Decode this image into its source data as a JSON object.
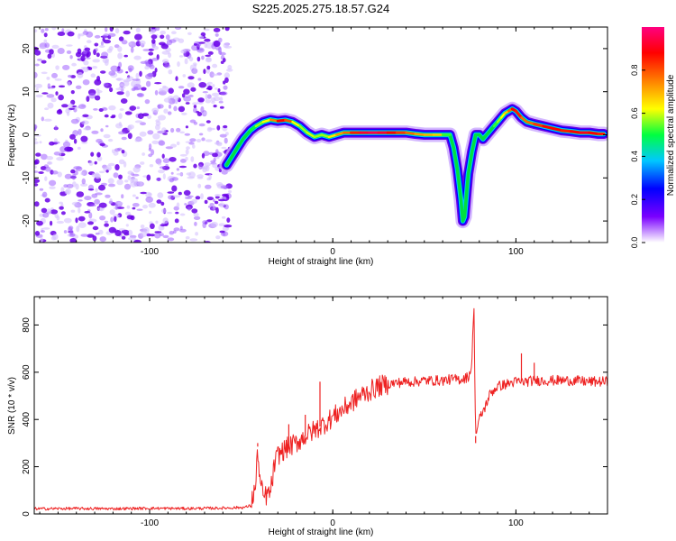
{
  "chart_data": [
    {
      "type": "heatmap",
      "title": "S225.2025.275.18.57.G24",
      "xlabel": "Height of straight line (km)",
      "ylabel": "Frequency (Hz)",
      "xlim": [
        -163,
        150
      ],
      "ylim": [
        -25,
        25
      ],
      "xticks": [
        -100,
        0,
        100
      ],
      "yticks": [
        -20,
        -10,
        0,
        10,
        20
      ],
      "colorbar": {
        "label": "Normalized spectral amplitude",
        "range": [
          0,
          1
        ],
        "ticks": [
          0.0,
          0.2,
          0.4,
          0.6,
          0.8
        ],
        "colormap": [
          "#ffffff",
          "#7a00ff",
          "#0000ff",
          "#00c8ff",
          "#00ff40",
          "#ffff00",
          "#ff8000",
          "#ff0000",
          "#ff0080"
        ]
      },
      "noise_region": {
        "x_range": [
          -163,
          -56
        ],
        "amplitude_range": [
          0.02,
          0.15
        ],
        "color": "#7a00ff"
      },
      "ridge": {
        "x": [
          -58,
          -55,
          -52,
          -49,
          -45,
          -42,
          -38,
          -34,
          -30,
          -26,
          -22,
          -18,
          -14,
          -10,
          -6,
          -2,
          2,
          6,
          10,
          15,
          20,
          25,
          30,
          35,
          40,
          45,
          50,
          55,
          60,
          64,
          66,
          68,
          70,
          71,
          72,
          73,
          74,
          76,
          78,
          80,
          82,
          84,
          86,
          88,
          90,
          92,
          94,
          96,
          98,
          100,
          103,
          106,
          110,
          115,
          120,
          125,
          130,
          135,
          140,
          145,
          148
        ],
        "frequency": [
          -7,
          -5,
          -3,
          -1,
          1,
          2,
          3,
          3.5,
          3.2,
          3.4,
          3,
          2,
          0.5,
          -0.5,
          0,
          -0.5,
          0,
          0.5,
          0.5,
          0.5,
          0.5,
          0.5,
          0.5,
          0.5,
          0.5,
          0.2,
          0,
          0,
          0,
          0,
          -3,
          -8,
          -15,
          -20,
          -19,
          -14,
          -9,
          -4,
          0,
          0,
          -1,
          0,
          1,
          2,
          3,
          4,
          5,
          5.5,
          6,
          5.5,
          4,
          3,
          2.5,
          2,
          1.5,
          1,
          0.8,
          0.5,
          0.5,
          0.2,
          0.2
        ],
        "amplitude": [
          0.3,
          0.35,
          0.35,
          0.4,
          0.45,
          0.55,
          0.6,
          0.65,
          0.85,
          0.9,
          0.7,
          0.55,
          0.6,
          0.6,
          0.55,
          0.6,
          0.7,
          0.75,
          0.8,
          0.9,
          0.95,
          0.95,
          0.9,
          0.85,
          0.8,
          0.75,
          0.7,
          0.7,
          0.65,
          0.4,
          0.3,
          0.25,
          0.2,
          0.2,
          0.2,
          0.25,
          0.3,
          0.35,
          0.4,
          0.4,
          0.35,
          0.4,
          0.45,
          0.5,
          0.55,
          0.6,
          0.65,
          0.7,
          0.85,
          0.9,
          0.8,
          0.75,
          0.8,
          0.85,
          0.9,
          0.85,
          0.85,
          0.9,
          0.9,
          0.85,
          0.85
        ]
      }
    },
    {
      "type": "line",
      "title": "",
      "xlabel": "Height of straight line (km)",
      "ylabel": "SNR (10 * v/v)",
      "xlim": [
        -163,
        150
      ],
      "ylim": [
        0,
        920
      ],
      "xticks": [
        -100,
        0,
        100
      ],
      "yticks": [
        0,
        200,
        400,
        600,
        800
      ],
      "color": "#ee2222",
      "series": [
        {
          "name": "SNR",
          "x": [
            -163,
            -140,
            -120,
            -100,
            -80,
            -60,
            -48,
            -45,
            -42,
            -41,
            -40,
            -38,
            -36,
            -34,
            -32,
            -30,
            -25,
            -20,
            -15,
            -10,
            -5,
            0,
            5,
            10,
            15,
            20,
            25,
            30,
            35,
            40,
            45,
            50,
            55,
            60,
            65,
            70,
            74,
            76,
            77,
            78,
            80,
            83,
            86,
            90,
            95,
            100,
            105,
            110,
            120,
            130,
            140,
            150
          ],
          "y": [
            22,
            23,
            22,
            24,
            23,
            25,
            28,
            35,
            120,
            285,
            150,
            70,
            80,
            90,
            200,
            250,
            280,
            300,
            330,
            355,
            380,
            410,
            440,
            470,
            500,
            520,
            540,
            550,
            555,
            560,
            560,
            565,
            565,
            565,
            570,
            570,
            580,
            630,
            910,
            330,
            400,
            450,
            510,
            540,
            550,
            560,
            560,
            565,
            565,
            565,
            560,
            560
          ]
        }
      ],
      "spikes": [
        {
          "x": -41,
          "y": 300
        },
        {
          "x": -24,
          "y": 380
        },
        {
          "x": -15,
          "y": 420
        },
        {
          "x": -7,
          "y": 560
        },
        {
          "x": 77,
          "y": 910
        },
        {
          "x": 78,
          "y": 300
        },
        {
          "x": 103,
          "y": 680
        },
        {
          "x": 110,
          "y": 640
        }
      ]
    }
  ]
}
